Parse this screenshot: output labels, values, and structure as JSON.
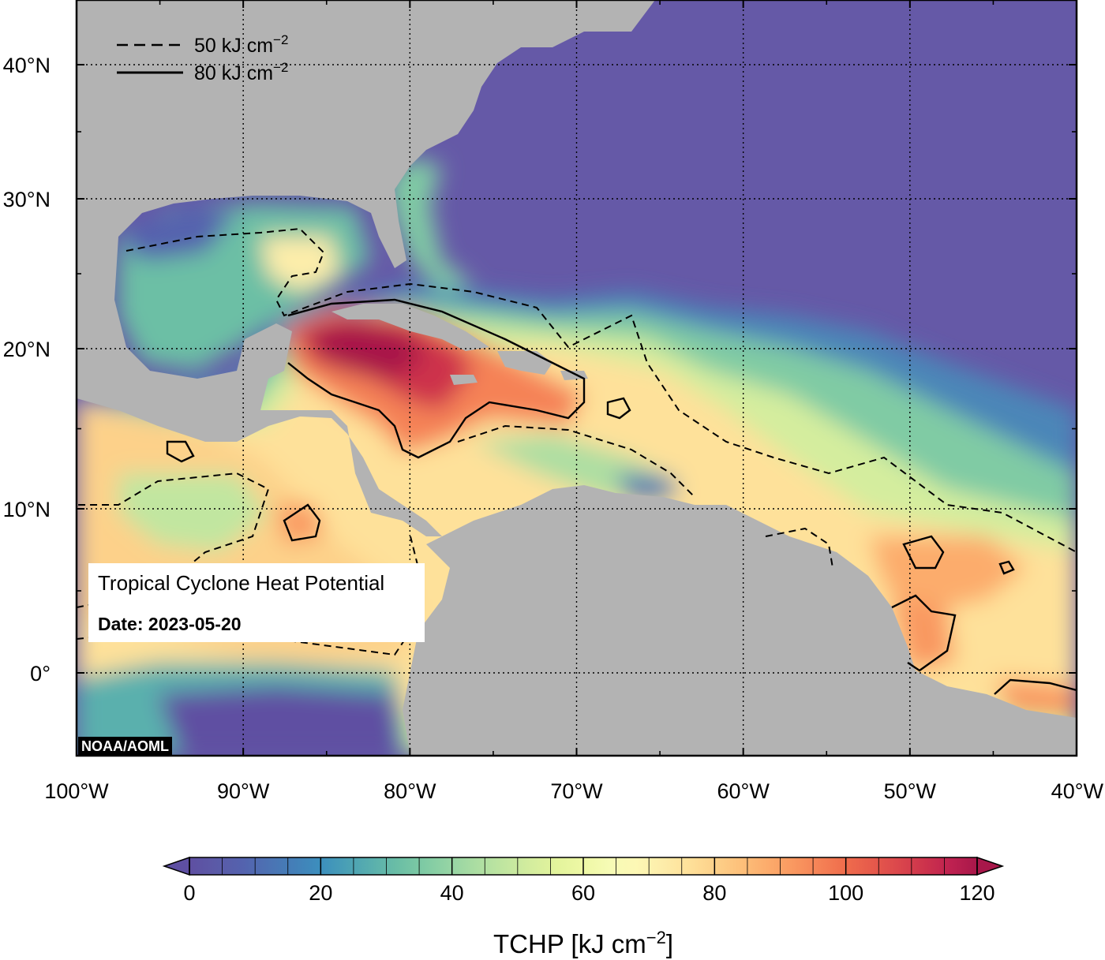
{
  "map": {
    "legend": {
      "dashed_label": "50 kJ cm",
      "solid_label": "80 kJ cm",
      "exponent": "−2"
    },
    "lat_labels": [
      {
        "text": "40°N",
        "lat": 40
      },
      {
        "text": "30°N",
        "lat": 30
      },
      {
        "text": "20°N",
        "lat": 20
      },
      {
        "text": "10°N",
        "lat": 10
      },
      {
        "text": "0°",
        "lat": 0
      }
    ],
    "lon_labels": [
      {
        "text": "100°W",
        "lon": -100
      },
      {
        "text": "90°W",
        "lon": -90
      },
      {
        "text": "80°W",
        "lon": -80
      },
      {
        "text": "70°W",
        "lon": -70
      },
      {
        "text": "60°W",
        "lon": -60
      },
      {
        "text": "50°W",
        "lon": -50
      },
      {
        "text": "40°W",
        "lon": -40
      }
    ],
    "extent": {
      "lon_min": -100,
      "lon_max": -40,
      "lat_min": -5,
      "lat_max": 45
    },
    "info_title": "Tropical Cyclone Heat Potential",
    "info_date": "Date: 2023-05-20",
    "credit": "NOAA/AOML",
    "colors": {
      "land": "#b3b3b3",
      "low": "#6559a7",
      "high": "#a8174a"
    }
  },
  "colorbar": {
    "ticks": [
      "0",
      "20",
      "40",
      "60",
      "80",
      "100",
      "120"
    ],
    "min": 0,
    "max": 120,
    "title_main": "TCHP [kJ cm",
    "title_exp": "−2",
    "title_end": "]",
    "colors": [
      "#5e4fa2",
      "#5b5aa7",
      "#5462ae",
      "#4c72b3",
      "#437fb8",
      "#3c8fbd",
      "#4aa0b5",
      "#5ab0ad",
      "#6cbfa5",
      "#80cba4",
      "#97d5a4",
      "#addea2",
      "#c1e6a0",
      "#d4ed9e",
      "#e3f49c",
      "#eef8a5",
      "#f6fbb5",
      "#fdf8b5",
      "#fdedaa",
      "#fee19a",
      "#fdd18a",
      "#fdc07a",
      "#fcac6c",
      "#f99860",
      "#f58256",
      "#ef6c4c",
      "#e65a4b",
      "#db474c",
      "#cd334c",
      "#be2150",
      "#a8174a"
    ]
  }
}
